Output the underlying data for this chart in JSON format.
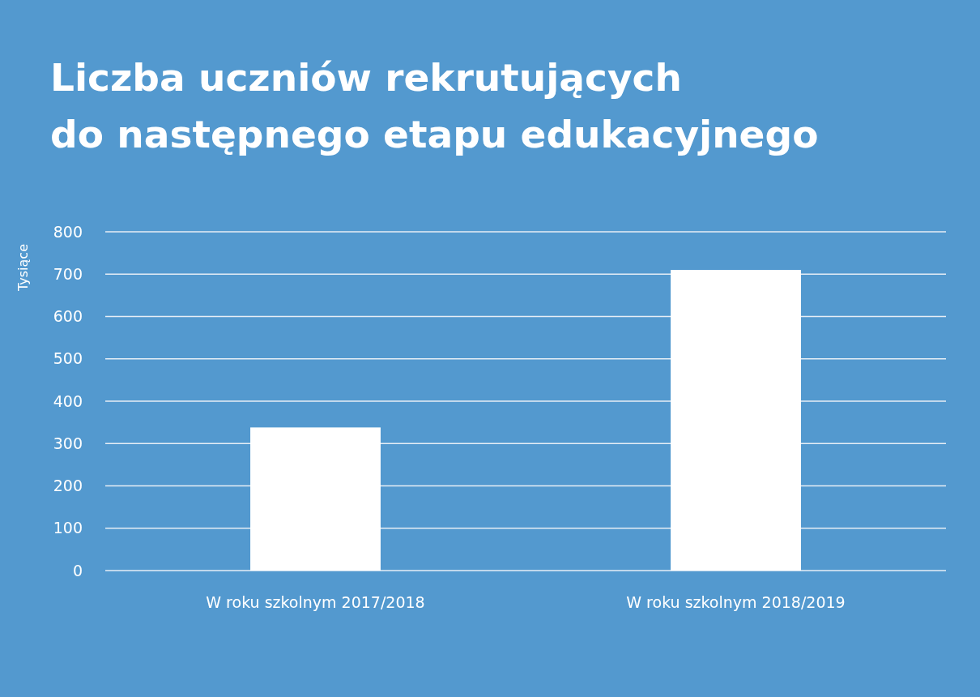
{
  "chart_data": {
    "type": "bar",
    "title": "Liczba uczniów rekrutujących\ndo następnego etapu edukacyjnego",
    "ylabel": "Tysiące",
    "categories": [
      "W roku szkolnym 2017/2018",
      "W roku szkolnym 2018/2019"
    ],
    "values": [
      338,
      710
    ],
    "color": "#ffffff",
    "ylim": [
      0,
      800
    ],
    "yticks": [
      0,
      100,
      200,
      300,
      400,
      500,
      600,
      700,
      800
    ],
    "grid": "y"
  }
}
